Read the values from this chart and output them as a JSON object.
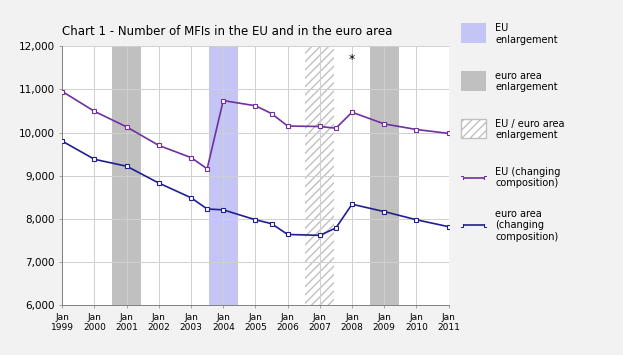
{
  "title": "Chart 1 - Number of MFIs in the EU and in the euro area",
  "ylim": [
    6000,
    12000
  ],
  "yticks": [
    6000,
    7000,
    8000,
    9000,
    10000,
    11000,
    12000
  ],
  "xtick_positions": [
    0,
    1,
    2,
    3,
    4,
    5,
    6,
    7,
    8,
    9,
    10,
    11,
    12
  ],
  "xtick_labels": [
    "Jan\n1999",
    "Jan\n2000",
    "Jan\n2001",
    "Jan\n2002",
    "Jan\n2003",
    "Jan\n2004",
    "Jan\n2005",
    "Jan\n2006",
    "Jan\n2007",
    "Jan\n2008",
    "Jan\n2009",
    "Jan\n2010",
    "Jan\n2011"
  ],
  "eu_x": [
    0,
    1,
    2,
    3,
    4,
    4.5,
    5,
    6,
    6.5,
    7,
    8,
    8.5,
    9,
    10,
    11,
    12
  ],
  "eu_y": [
    10950,
    10490,
    10130,
    9700,
    9420,
    9160,
    10740,
    10620,
    10440,
    10150,
    10140,
    10100,
    10470,
    10200,
    10070,
    9980
  ],
  "ea_x": [
    0,
    1,
    2,
    3,
    4,
    4.5,
    5,
    6,
    6.5,
    7,
    8,
    8.5,
    9,
    10,
    11,
    12
  ],
  "ea_y": [
    9800,
    9380,
    9220,
    8830,
    8490,
    8230,
    8210,
    7980,
    7890,
    7640,
    7620,
    7790,
    8340,
    8170,
    7980,
    7820
  ],
  "eu_color": "#7030a0",
  "ea_color": "#1f1f8f",
  "eu_enl_xmin": 4.55,
  "eu_enl_xmax": 5.45,
  "eu_enl_color": "#c5c5f5",
  "ea_enl1_xmin": 1.55,
  "ea_enl1_xmax": 2.45,
  "ea_enl2_xmin": 9.55,
  "ea_enl2_xmax": 10.45,
  "ea_enl_color": "#c0c0c0",
  "eu_ea_enl_xmin": 7.55,
  "eu_ea_enl_xmax": 8.45,
  "eu_ea_enl_color": "#c0c0c0",
  "asterisk_x": 9.0,
  "asterisk_y": 11700,
  "bg_color": "#f2f2f2",
  "plot_bg_color": "#ffffff",
  "grid_color": "#d0d0d0",
  "spine_color": "#808080"
}
